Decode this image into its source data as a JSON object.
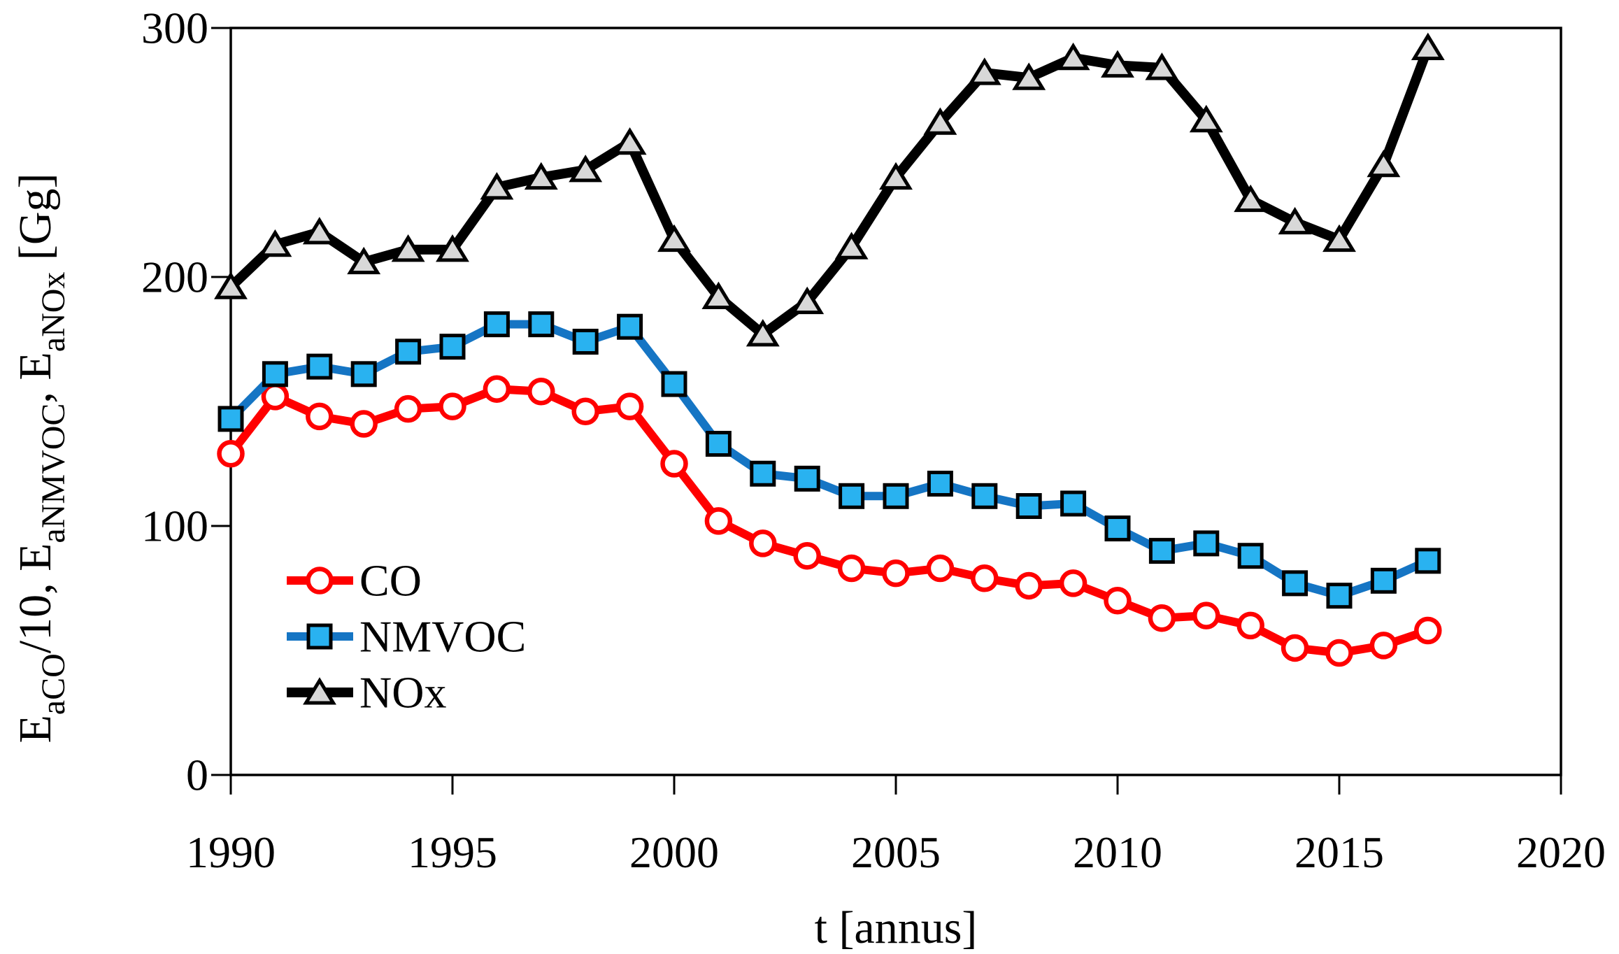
{
  "chart_data": {
    "type": "line",
    "title": "",
    "xlabel": "t [annus]",
    "ylabel": "E_{aCO}/10, E_{aNMVOC}, E_{aNOx} [Gg]",
    "years": [
      1990,
      1991,
      1992,
      1993,
      1994,
      1995,
      1996,
      1997,
      1998,
      1999,
      2000,
      2001,
      2002,
      2003,
      2004,
      2005,
      2006,
      2007,
      2008,
      2009,
      2010,
      2011,
      2012,
      2013,
      2014,
      2015,
      2016,
      2017
    ],
    "xlim": [
      1990,
      2020
    ],
    "ylim": [
      0,
      300
    ],
    "xticks": [
      1990,
      1995,
      2000,
      2005,
      2010,
      2015,
      2020
    ],
    "yticks": [
      0,
      100,
      200,
      300
    ],
    "grid": false,
    "legend_position": "inside-lower-left",
    "series": [
      {
        "name": "CO",
        "line_color": "#FF0000",
        "marker": "circle",
        "marker_fill": "#FFFFFF",
        "marker_stroke": "#FF0000",
        "values": [
          129,
          152,
          144,
          141,
          147,
          148,
          155,
          154,
          146,
          148,
          125,
          102,
          93,
          88,
          83,
          81,
          83,
          79,
          76,
          77,
          70,
          63,
          64,
          60,
          51,
          49,
          52,
          58
        ]
      },
      {
        "name": "NMVOC",
        "line_color": "#1575C4",
        "marker": "square",
        "marker_fill": "#29B2F0",
        "marker_stroke": "#000000",
        "values": [
          143,
          161,
          164,
          161,
          170,
          172,
          181,
          181,
          174,
          180,
          157,
          133,
          121,
          119,
          112,
          112,
          117,
          112,
          108,
          109,
          99,
          90,
          93,
          88,
          77,
          72,
          78,
          86
        ]
      },
      {
        "name": "NOx",
        "line_color": "#000000",
        "marker": "triangle",
        "marker_fill": "#D8D8D8",
        "marker_stroke": "#000000",
        "values": [
          196,
          213,
          218,
          206,
          211,
          211,
          236,
          240,
          243,
          254,
          215,
          192,
          177,
          190,
          212,
          240,
          262,
          282,
          280,
          288,
          285,
          284,
          263,
          231,
          222,
          215,
          245,
          292
        ]
      }
    ]
  }
}
